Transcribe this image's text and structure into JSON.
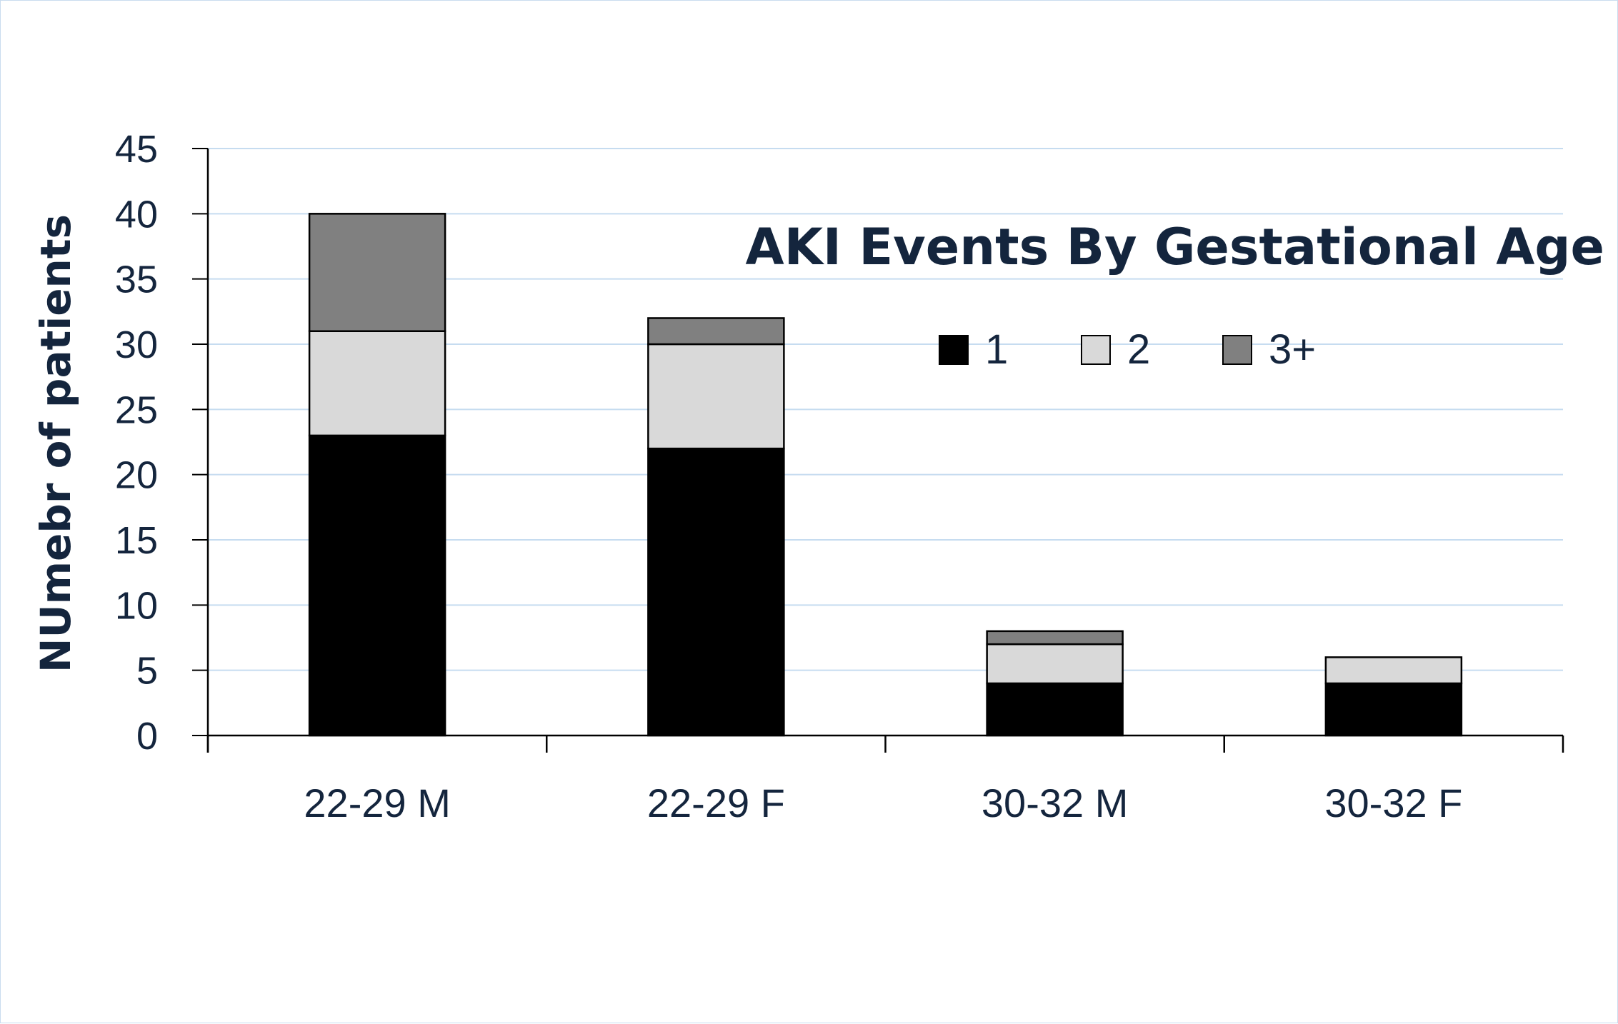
{
  "chart_data": {
    "type": "bar",
    "stacked": true,
    "title": "AKI Events By Gestational Age",
    "xlabel": "",
    "ylabel": "NUmebr of patients",
    "categories": [
      "22-29 M",
      "22-29 F",
      "30-32 M",
      "30-32 F"
    ],
    "series": [
      {
        "name": "1",
        "values": [
          23,
          22,
          4,
          4
        ],
        "color": "#000000"
      },
      {
        "name": "2",
        "values": [
          8,
          8,
          3,
          2
        ],
        "color": "#d9d9d9"
      },
      {
        "name": "3+",
        "values": [
          9,
          2,
          1,
          0
        ],
        "color": "#808080"
      }
    ],
    "ylim": [
      0,
      45
    ],
    "yticks": [
      0,
      5,
      10,
      15,
      20,
      25,
      30,
      35,
      40,
      45
    ],
    "grid": true,
    "legend_position": "top-right"
  }
}
